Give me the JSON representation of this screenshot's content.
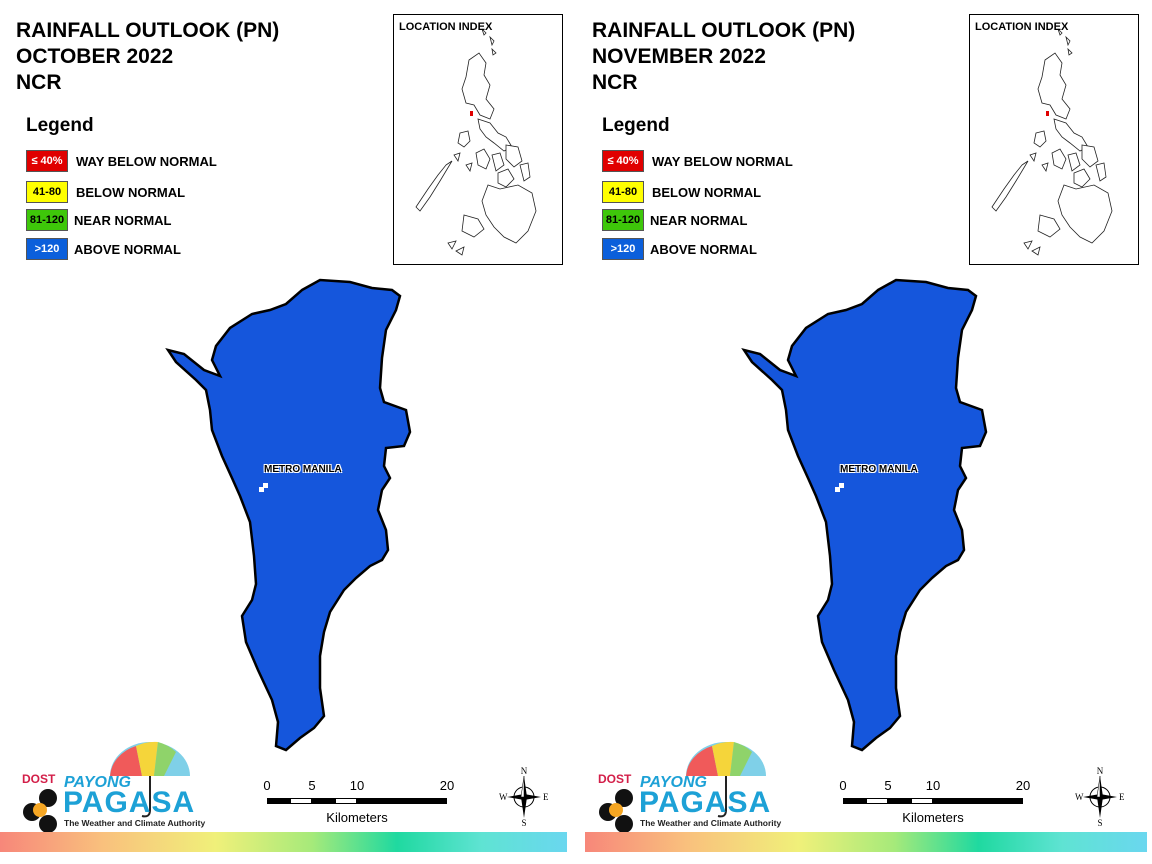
{
  "panels": [
    {
      "title": "RAINFALL OUTLOOK (PN)",
      "month": "OCTOBER 2022",
      "region": "NCR",
      "legend_title": "Legend",
      "legend": [
        {
          "value": "≤ 40%",
          "label": "WAY BELOW NORMAL",
          "color": "#e00000",
          "text_color": "#ffffff"
        },
        {
          "value": "41-80",
          "label": "BELOW NORMAL",
          "color": "#ffff00",
          "text_color": "#000000"
        },
        {
          "value": "81-120",
          "label": "NEAR NORMAL",
          "color": "#3ec70a",
          "text_color": "#000000"
        },
        {
          "value": ">120",
          "label": "ABOVE NORMAL",
          "color": "#0b5fdb",
          "text_color": "#ffffff"
        }
      ],
      "index_title": "LOCATION INDEX",
      "place_label": "METRO MANILA",
      "map_fill": "#1556dc",
      "scale_ticks": [
        "0",
        "5",
        "10",
        "20"
      ],
      "scale_units": "Kilometers",
      "compass": {
        "n": "N",
        "s": "S",
        "e": "E",
        "w": "W"
      },
      "logo": {
        "dost": "DOST",
        "payong": "PAYONG",
        "pagasa": "PAGASA",
        "tagline": "The Weather and Climate Authority"
      }
    },
    {
      "title": "RAINFALL OUTLOOK (PN)",
      "month": "NOVEMBER 2022",
      "region": "NCR",
      "legend_title": "Legend",
      "legend": [
        {
          "value": "≤ 40%",
          "label": "WAY BELOW NORMAL",
          "color": "#e00000",
          "text_color": "#ffffff"
        },
        {
          "value": "41-80",
          "label": "BELOW NORMAL",
          "color": "#ffff00",
          "text_color": "#000000"
        },
        {
          "value": "81-120",
          "label": "NEAR NORMAL",
          "color": "#3ec70a",
          "text_color": "#000000"
        },
        {
          "value": ">120",
          "label": "ABOVE NORMAL",
          "color": "#0b5fdb",
          "text_color": "#ffffff"
        }
      ],
      "index_title": "LOCATION INDEX",
      "place_label": "METRO MANILA",
      "map_fill": "#1556dc",
      "scale_ticks": [
        "0",
        "5",
        "10",
        "20"
      ],
      "scale_units": "Kilometers",
      "compass": {
        "n": "N",
        "s": "S",
        "e": "E",
        "w": "W"
      },
      "logo": {
        "dost": "DOST",
        "payong": "PAYONG",
        "pagasa": "PAGASA",
        "tagline": "The Weather and Climate Authority"
      }
    }
  ]
}
